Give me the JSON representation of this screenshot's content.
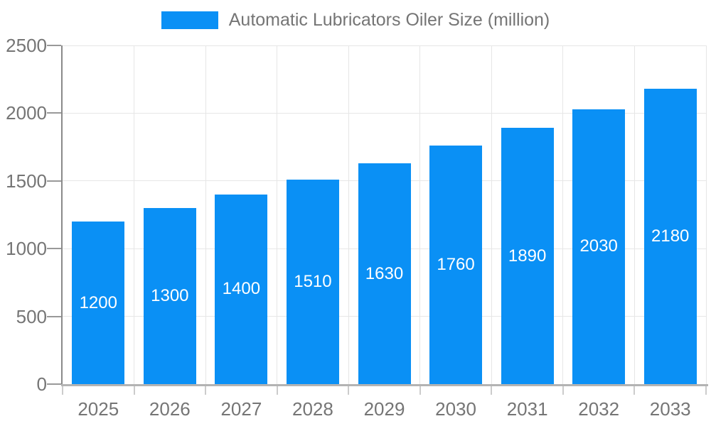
{
  "chart_data": {
    "type": "bar",
    "title": "",
    "legend_label": "Automatic Lubricators Oiler Size (million)",
    "legend_position": "top",
    "categories": [
      "2025",
      "2026",
      "2027",
      "2028",
      "2029",
      "2030",
      "2031",
      "2032",
      "2033"
    ],
    "values": [
      1200,
      1300,
      1400,
      1510,
      1630,
      1760,
      1890,
      2030,
      2180
    ],
    "xlabel": "",
    "ylabel": "",
    "ylim": [
      0,
      2500
    ],
    "yticks": [
      0,
      500,
      1000,
      1500,
      2000,
      2500
    ],
    "grid": true,
    "bar_color": "#0a90f5",
    "bar_label_color": "#ffffff",
    "axis_text_color": "#757575",
    "gridline_color": "#e6e6e6",
    "y_axis_line_color": "#8a8a8a",
    "x_axis_line_color": "#b3b3b3"
  }
}
